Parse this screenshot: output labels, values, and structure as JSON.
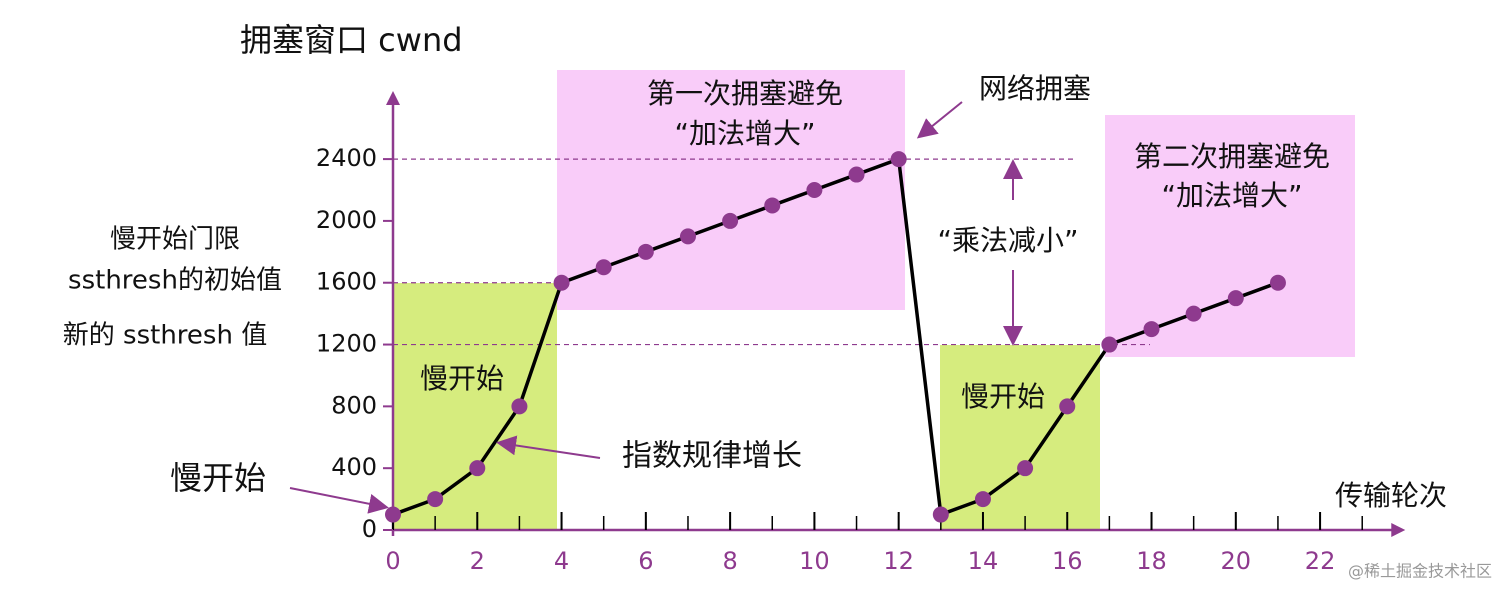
{
  "chart_data": {
    "type": "line",
    "y_label": "拥塞窗口 cwnd",
    "x_label": "传输轮次",
    "x": [
      0,
      1,
      2,
      3,
      4,
      5,
      6,
      7,
      8,
      9,
      10,
      11,
      12,
      13,
      14,
      15,
      16,
      17,
      18,
      19,
      20,
      21
    ],
    "series": [
      {
        "name": "cwnd",
        "color": "#000000",
        "marker_color": "#8e3a8e",
        "values": [
          100,
          200,
          400,
          800,
          1600,
          1700,
          1800,
          1900,
          2000,
          2100,
          2200,
          2300,
          2400,
          100,
          200,
          400,
          800,
          1200,
          1300,
          1400,
          1500,
          1600
        ]
      }
    ],
    "xlim": [
      0,
      23.5
    ],
    "ylim": [
      0,
      2750
    ],
    "xticks": [
      0,
      2,
      4,
      6,
      8,
      10,
      12,
      14,
      16,
      18,
      20,
      22
    ],
    "yticks": [
      0,
      400,
      800,
      1200,
      1600,
      2000,
      2400
    ],
    "axis_color": "#8e3a8e",
    "annotations": [
      {
        "text": "第一次拥塞避免"
      },
      {
        "text": "“加法增大”"
      },
      {
        "text": "网络拥塞"
      },
      {
        "text": "第二次拥塞避免"
      },
      {
        "text": "“加法增大”"
      },
      {
        "text": "“乘法减小”"
      },
      {
        "text": "慢开始门限"
      },
      {
        "text": "ssthresh的初始值"
      },
      {
        "text": "新的 ssthresh 值"
      },
      {
        "text": "慢开始"
      },
      {
        "text": "慢开始"
      },
      {
        "text": "慢开始"
      },
      {
        "text": "指数规律增长"
      },
      {
        "text": "@稀土掘金技术社区"
      }
    ]
  }
}
